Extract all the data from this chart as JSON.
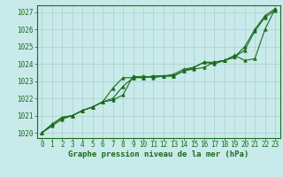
{
  "title": "Graphe pression niveau de la mer (hPa)",
  "bg_color": "#c8eaea",
  "grid_color": "#b0cccc",
  "line_color": "#1a6b1a",
  "border_color": "#1a6b1a",
  "xlim": [
    -0.5,
    23.5
  ],
  "ylim": [
    1019.7,
    1027.4
  ],
  "yticks": [
    1020,
    1021,
    1022,
    1023,
    1024,
    1025,
    1026,
    1027
  ],
  "xticks": [
    0,
    1,
    2,
    3,
    4,
    5,
    6,
    7,
    8,
    9,
    10,
    11,
    12,
    13,
    14,
    15,
    16,
    17,
    18,
    19,
    20,
    21,
    22,
    23
  ],
  "series": [
    [
      1020.0,
      1020.5,
      1020.9,
      1021.0,
      1021.3,
      1021.5,
      1021.8,
      1022.0,
      1022.7,
      1023.2,
      1023.2,
      1023.3,
      1023.3,
      1023.3,
      1023.6,
      1023.7,
      1023.8,
      1024.1,
      1024.2,
      1024.4,
      1024.8,
      1025.9,
      1026.7,
      1027.1
    ],
    [
      1020.0,
      1020.5,
      1020.9,
      1021.0,
      1021.3,
      1021.5,
      1021.8,
      1022.6,
      1023.2,
      1023.2,
      1023.3,
      1023.2,
      1023.3,
      1023.3,
      1023.6,
      1023.8,
      1024.1,
      1024.1,
      1024.2,
      1024.4,
      1025.0,
      1026.0,
      1026.8,
      1027.2
    ],
    [
      1020.0,
      1020.4,
      1020.8,
      1021.0,
      1021.3,
      1021.5,
      1021.8,
      1021.9,
      1022.2,
      1023.3,
      1023.2,
      1023.3,
      1023.3,
      1023.4,
      1023.7,
      1023.8,
      1024.1,
      1024.0,
      1024.2,
      1024.5,
      1024.2,
      1024.3,
      1026.0,
      1027.2
    ]
  ],
  "label_fontsize": 5.5,
  "xlabel_fontsize": 6.5,
  "marker_size": 2.5,
  "linewidth": 0.8
}
